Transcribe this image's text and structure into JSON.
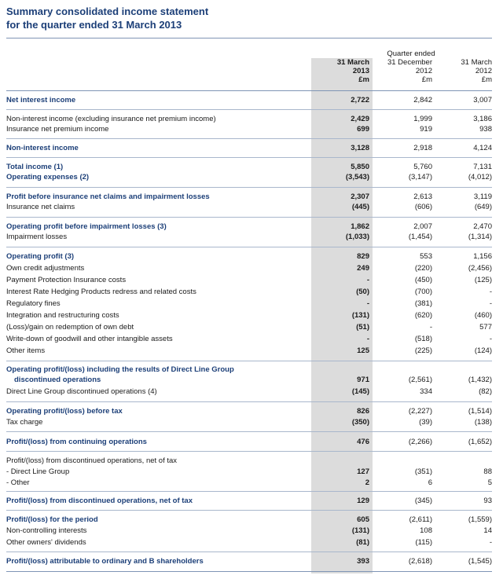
{
  "title": {
    "line1": "Summary consolidated income statement",
    "line2": "for the quarter ended 31 March 2013"
  },
  "header": {
    "group": "Quarter ended",
    "col1": [
      "31 March",
      "2013",
      "£m"
    ],
    "col2": [
      "31 December",
      "2012",
      "£m"
    ],
    "col3": [
      "31 March",
      "2012",
      "£m"
    ]
  },
  "rows": [
    {
      "label": "Net interest income",
      "v1": "2,722",
      "v2": "2,842",
      "v3": "3,007"
    },
    {
      "label": "Non-interest income (excluding insurance net premium income)",
      "v1": "2,429",
      "v2": "1,999",
      "v3": "3,186"
    },
    {
      "label": "Insurance net premium income",
      "v1": "699",
      "v2": "919",
      "v3": "938"
    },
    {
      "label": "Non-interest income",
      "v1": "3,128",
      "v2": "2,918",
      "v3": "4,124"
    },
    {
      "label": "Total income (1)",
      "v1": "5,850",
      "v2": "5,760",
      "v3": "7,131"
    },
    {
      "label": "Operating expenses (2)",
      "v1": "(3,543)",
      "v2": "(3,147)",
      "v3": "(4,012)"
    },
    {
      "label": "Profit before insurance net claims and impairment losses",
      "v1": "2,307",
      "v2": "2,613",
      "v3": "3,119"
    },
    {
      "label": "Insurance net claims",
      "v1": "(445)",
      "v2": "(606)",
      "v3": "(649)"
    },
    {
      "label": "Operating profit before impairment losses (3)",
      "v1": "1,862",
      "v2": "2,007",
      "v3": "2,470"
    },
    {
      "label": "Impairment losses",
      "v1": "(1,033)",
      "v2": "(1,454)",
      "v3": "(1,314)"
    },
    {
      "label": "Operating profit (3)",
      "v1": "829",
      "v2": "553",
      "v3": "1,156"
    },
    {
      "label": "Own credit adjustments",
      "v1": "249",
      "v2": "(220)",
      "v3": "(2,456)"
    },
    {
      "label": "Payment Protection Insurance costs",
      "v1": "-",
      "v2": "(450)",
      "v3": "(125)"
    },
    {
      "label": "Interest Rate Hedging Products redress and related costs",
      "v1": "(50)",
      "v2": "(700)",
      "v3": "-"
    },
    {
      "label": "Regulatory fines",
      "v1": "-",
      "v2": "(381)",
      "v3": "-"
    },
    {
      "label": "Integration and restructuring costs",
      "v1": "(131)",
      "v2": "(620)",
      "v3": "(460)"
    },
    {
      "label": "(Loss)/gain on redemption of own debt",
      "v1": "(51)",
      "v2": "-",
      "v3": "577"
    },
    {
      "label": "Write-down of goodwill and other intangible assets",
      "v1": "-",
      "v2": "(518)",
      "v3": "-"
    },
    {
      "label": "Other items",
      "v1": "125",
      "v2": "(225)",
      "v3": "(124)"
    },
    {
      "label": "Operating profit/(loss) including the results of Direct Line Group",
      "v1": "",
      "v2": "",
      "v3": ""
    },
    {
      "label": "discontinued operations",
      "v1": "971",
      "v2": "(2,561)",
      "v3": "(1,432)"
    },
    {
      "label": "Direct Line Group discontinued operations (4)",
      "v1": "(145)",
      "v2": "334",
      "v3": "(82)"
    },
    {
      "label": "Operating profit/(loss) before tax",
      "v1": "826",
      "v2": "(2,227)",
      "v3": "(1,514)"
    },
    {
      "label": "Tax charge",
      "v1": "(350)",
      "v2": "(39)",
      "v3": "(138)"
    },
    {
      "label": "Profit/(loss) from continuing operations",
      "v1": "476",
      "v2": "(2,266)",
      "v3": "(1,652)"
    },
    {
      "label": "Profit/(loss) from discontinued operations, net of tax",
      "v1": "",
      "v2": "",
      "v3": ""
    },
    {
      "label": "- Direct Line Group",
      "v1": "127",
      "v2": "(351)",
      "v3": "88"
    },
    {
      "label": "- Other",
      "v1": "2",
      "v2": "6",
      "v3": "5"
    },
    {
      "label": "Profit/(loss) from discontinued operations, net of tax",
      "v1": "129",
      "v2": "(345)",
      "v3": "93"
    },
    {
      "label": "Profit/(loss) for the period",
      "v1": "605",
      "v2": "(2,611)",
      "v3": "(1,559)"
    },
    {
      "label": "Non-controlling interests",
      "v1": "(131)",
      "v2": "108",
      "v3": "14"
    },
    {
      "label": "Other owners' dividends",
      "v1": "(81)",
      "v2": "(115)",
      "v3": "-"
    },
    {
      "label": "Profit/(loss) attributable to ordinary and B shareholders",
      "v1": "393",
      "v2": "(2,618)",
      "v3": "(1,545)"
    }
  ]
}
